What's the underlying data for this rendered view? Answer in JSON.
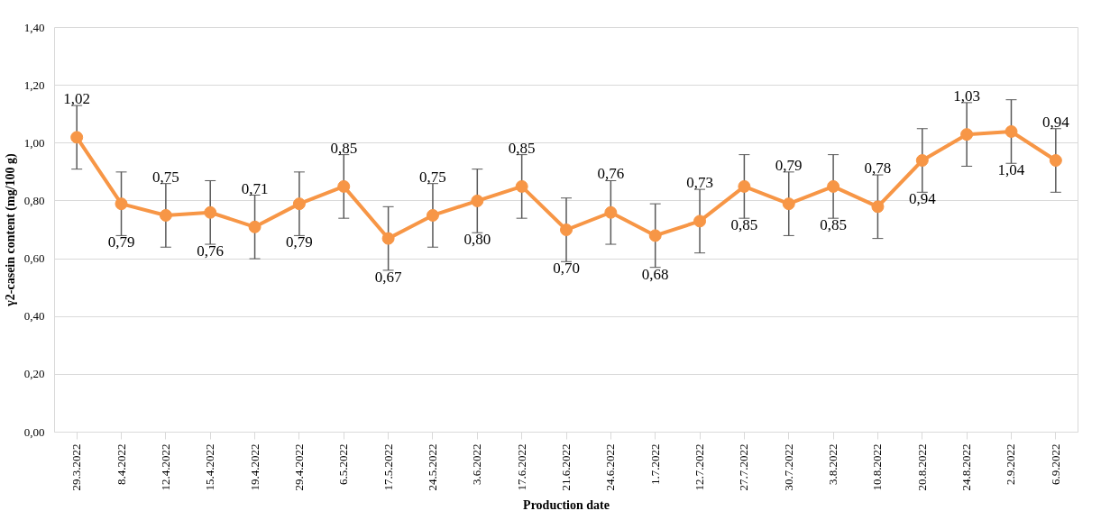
{
  "chart_data": {
    "type": "line",
    "xlabel": "Production date",
    "ylabel": "γ2-casein content (mg/100 g)",
    "categories": [
      "29.3.2022",
      "8.4.2022",
      "12.4.2022",
      "15.4.2022",
      "19.4.2022",
      "29.4.2022",
      "6.5.2022",
      "17.5.2022",
      "24.5.2022",
      "3.6.2022",
      "17.6.2022",
      "21.6.2022",
      "24.6.2022",
      "1.7.2022",
      "12.7.2022",
      "27.7.2022",
      "30.7.2022",
      "3.8.2022",
      "10.8.2022",
      "20.8.2022",
      "24.8.2022",
      "2.9.2022",
      "6.9.2022"
    ],
    "series": [
      {
        "color": "#f79646",
        "values": [
          1.02,
          0.79,
          0.75,
          0.76,
          0.71,
          0.79,
          0.85,
          0.67,
          0.75,
          0.8,
          0.85,
          0.7,
          0.76,
          0.68,
          0.73,
          0.85,
          0.79,
          0.85,
          0.78,
          0.94,
          1.03,
          1.04,
          0.94
        ],
        "value_labels": [
          "1,02",
          "0,79",
          "0,75",
          "0,76",
          "0,71",
          "0,79",
          "0,85",
          "0,67",
          "0,75",
          "0,80",
          "0,85",
          "0,70",
          "0,76",
          "0,68",
          "0,73",
          "0,85",
          "0,79",
          "0,85",
          "0,78",
          "0,94",
          "1,03",
          "1,04",
          "0,94"
        ],
        "errors": [
          0.11,
          0.11,
          0.11,
          0.11,
          0.11,
          0.11,
          0.11,
          0.11,
          0.11,
          0.11,
          0.11,
          0.11,
          0.11,
          0.11,
          0.11,
          0.11,
          0.11,
          0.11,
          0.11,
          0.11,
          0.11,
          0.11,
          0.11
        ]
      }
    ],
    "ylim": [
      0,
      1.4
    ],
    "yticks": [
      {
        "value": 0,
        "label": "0,00"
      },
      {
        "value": 0.2,
        "label": "0,20"
      },
      {
        "value": 0.4,
        "label": "0,40"
      },
      {
        "value": 0.6,
        "label": "0,60"
      },
      {
        "value": 0.8,
        "label": "0,80"
      },
      {
        "value": 1.0,
        "label": "1,00"
      },
      {
        "value": 1.2,
        "label": "1,20"
      },
      {
        "value": 1.4,
        "label": "1,40"
      }
    ],
    "grid": "y",
    "marker": "circle",
    "line_style": "solid"
  }
}
